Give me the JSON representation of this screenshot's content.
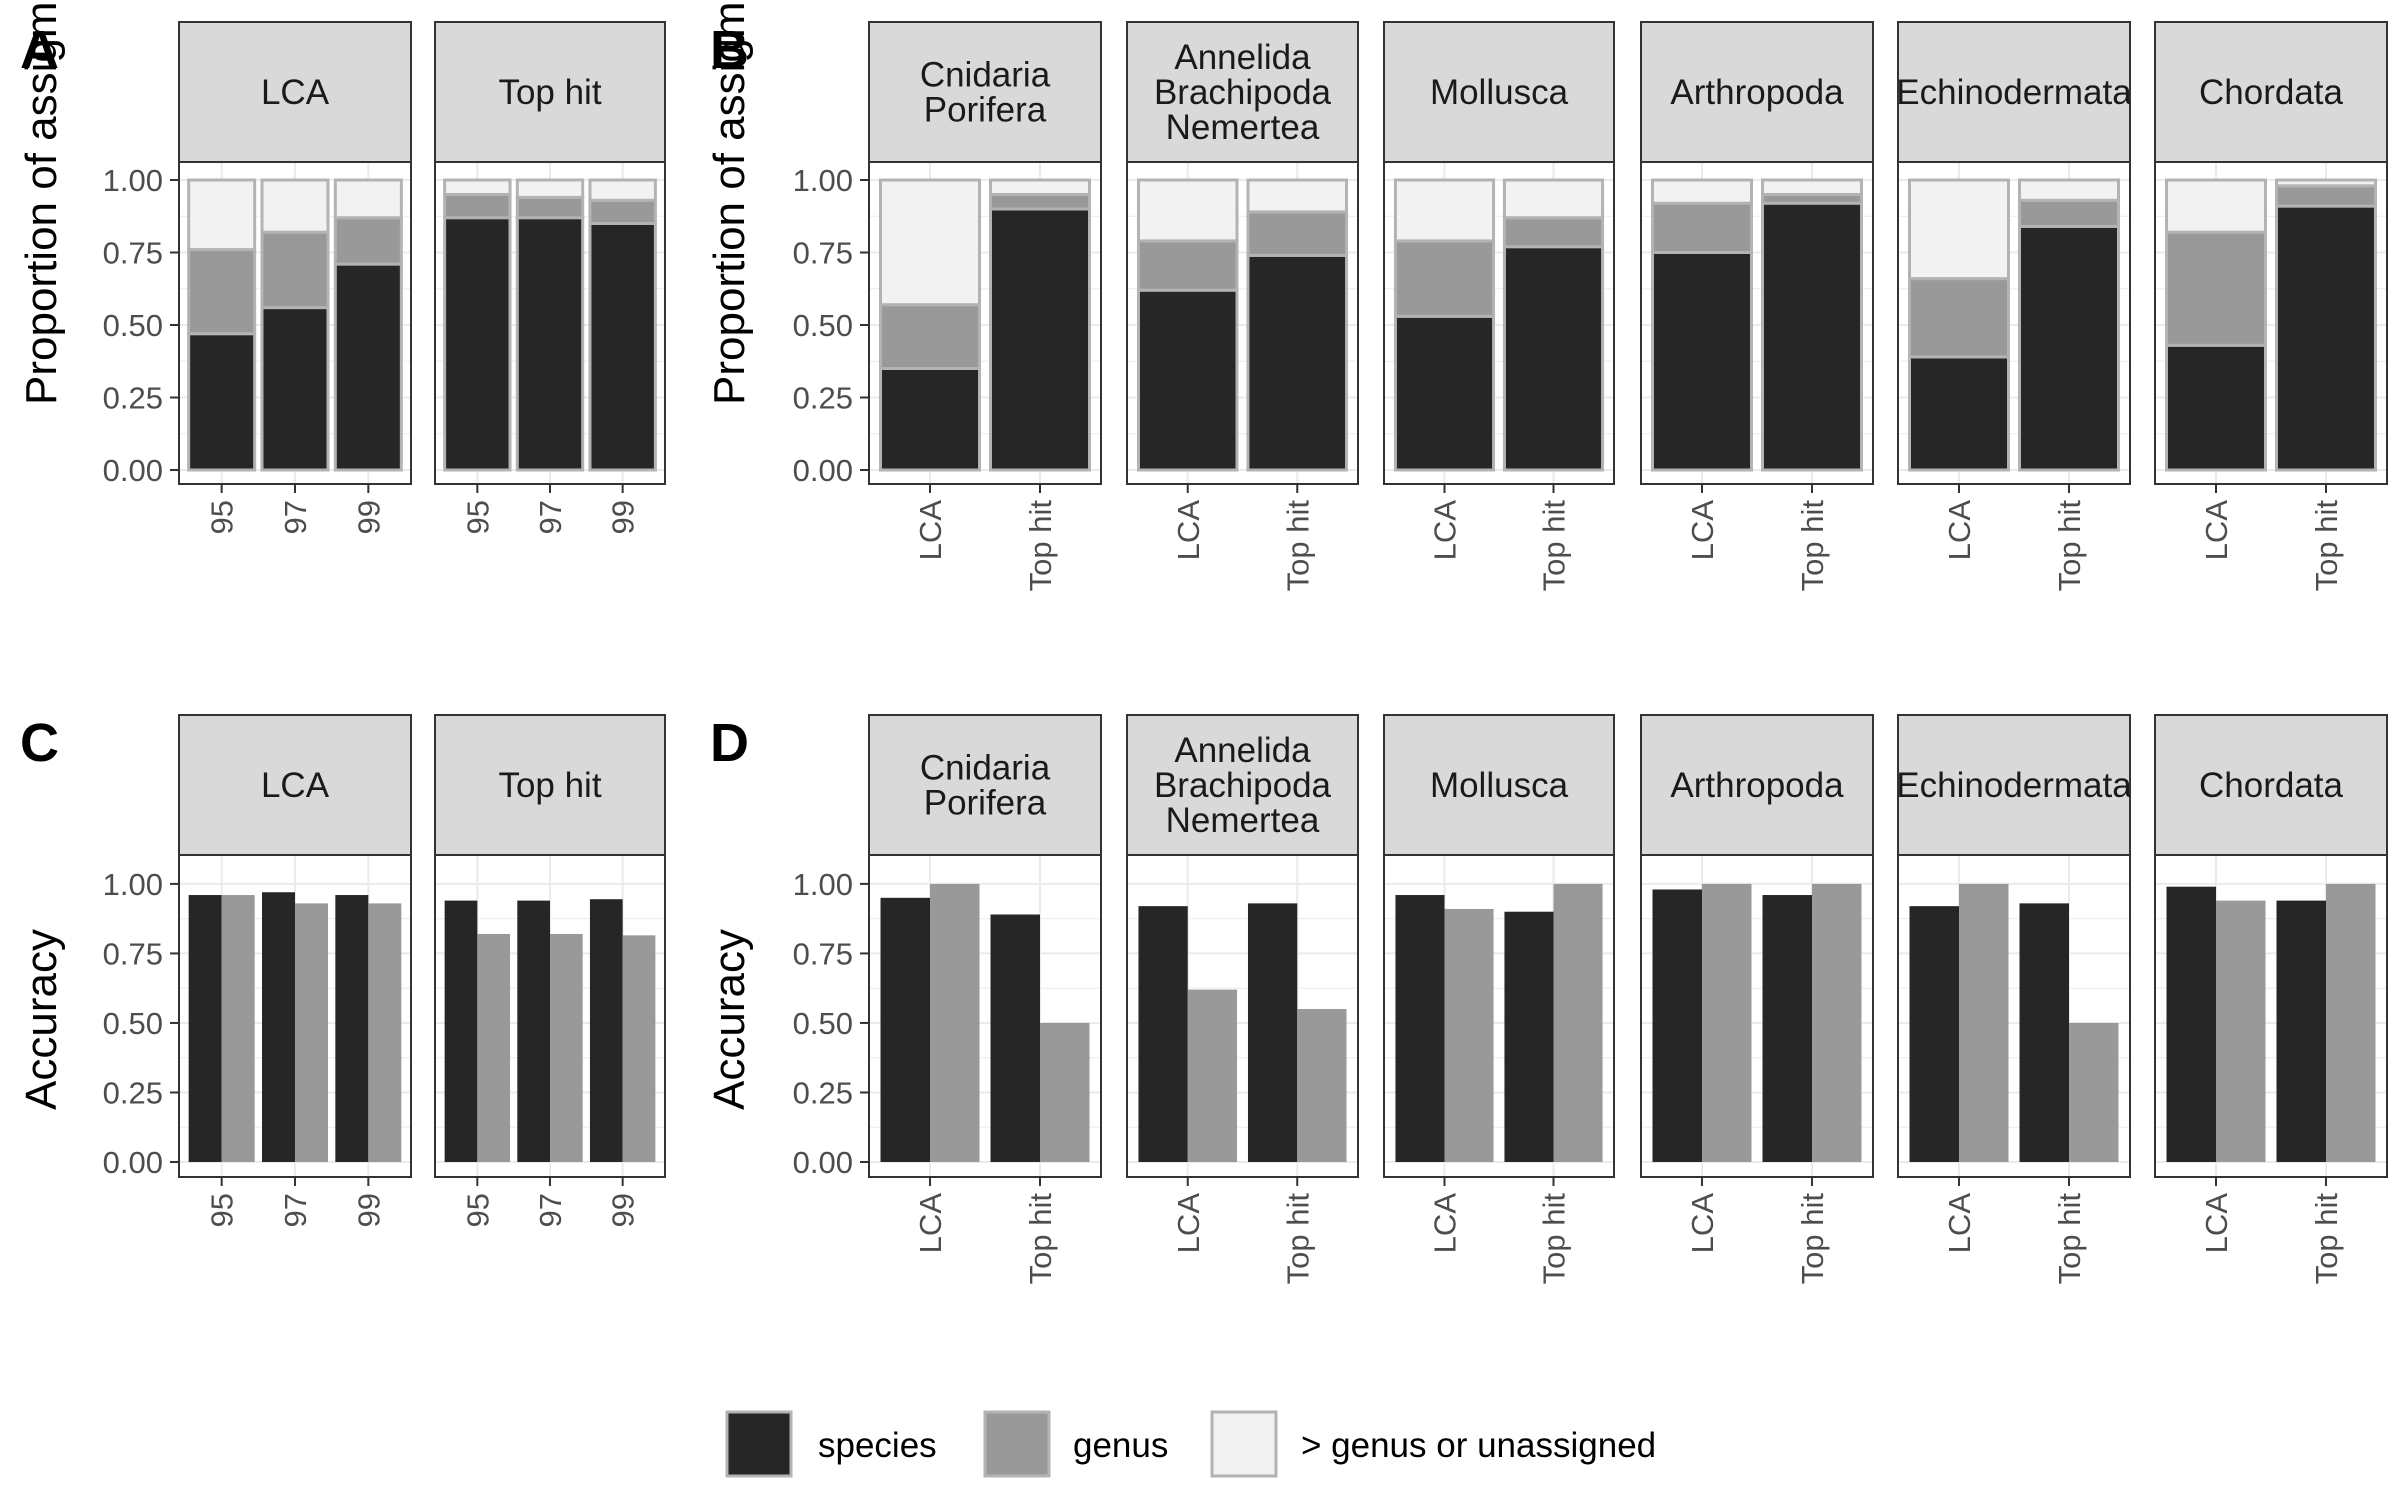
{
  "chart_data": [
    {
      "panel": "A",
      "type": "bar",
      "stacked": true,
      "ylabel": "Proportion of assigments",
      "ylim": [
        0,
        1
      ],
      "yticks": [
        "0.00",
        "0.25",
        "0.50",
        "0.75",
        "1.00"
      ],
      "facets": [
        {
          "strip": "LCA",
          "categories": [
            "95",
            "97",
            "99"
          ],
          "series": [
            {
              "name": "species",
              "values": [
                0.47,
                0.56,
                0.71
              ]
            },
            {
              "name": "genus",
              "values": [
                0.29,
                0.26,
                0.16
              ]
            },
            {
              "name": "> genus or unassigned",
              "values": [
                0.24,
                0.18,
                0.13
              ]
            }
          ]
        },
        {
          "strip": "Top hit",
          "categories": [
            "95",
            "97",
            "99"
          ],
          "series": [
            {
              "name": "species",
              "values": [
                0.87,
                0.87,
                0.85
              ]
            },
            {
              "name": "genus",
              "values": [
                0.08,
                0.07,
                0.08
              ]
            },
            {
              "name": "> genus or unassigned",
              "values": [
                0.05,
                0.06,
                0.07
              ]
            }
          ]
        }
      ]
    },
    {
      "panel": "B",
      "type": "bar",
      "stacked": true,
      "ylabel": "Proportion of assigments",
      "ylim": [
        0,
        1
      ],
      "yticks": [
        "0.00",
        "0.25",
        "0.50",
        "0.75",
        "1.00"
      ],
      "facets": [
        {
          "strip": [
            "Cnidaria",
            "Porifera"
          ],
          "categories": [
            "LCA",
            "Top hit"
          ],
          "series": [
            {
              "name": "species",
              "values": [
                0.35,
                0.9
              ]
            },
            {
              "name": "genus",
              "values": [
                0.22,
                0.05
              ]
            },
            {
              "name": "> genus or unassigned",
              "values": [
                0.43,
                0.05
              ]
            }
          ]
        },
        {
          "strip": [
            "Annelida",
            "Brachipoda",
            "Nemertea"
          ],
          "categories": [
            "LCA",
            "Top hit"
          ],
          "series": [
            {
              "name": "species",
              "values": [
                0.62,
                0.74
              ]
            },
            {
              "name": "genus",
              "values": [
                0.17,
                0.15
              ]
            },
            {
              "name": "> genus or unassigned",
              "values": [
                0.21,
                0.11
              ]
            }
          ]
        },
        {
          "strip": [
            "Mollusca"
          ],
          "categories": [
            "LCA",
            "Top hit"
          ],
          "series": [
            {
              "name": "species",
              "values": [
                0.53,
                0.77
              ]
            },
            {
              "name": "genus",
              "values": [
                0.26,
                0.1
              ]
            },
            {
              "name": "> genus or unassigned",
              "values": [
                0.21,
                0.13
              ]
            }
          ]
        },
        {
          "strip": [
            "Arthropoda"
          ],
          "categories": [
            "LCA",
            "Top hit"
          ],
          "series": [
            {
              "name": "species",
              "values": [
                0.75,
                0.92
              ]
            },
            {
              "name": "genus",
              "values": [
                0.17,
                0.03
              ]
            },
            {
              "name": "> genus or unassigned",
              "values": [
                0.08,
                0.05
              ]
            }
          ]
        },
        {
          "strip": [
            "Echinodermata"
          ],
          "categories": [
            "LCA",
            "Top hit"
          ],
          "series": [
            {
              "name": "species",
              "values": [
                0.39,
                0.84
              ]
            },
            {
              "name": "genus",
              "values": [
                0.27,
                0.09
              ]
            },
            {
              "name": "> genus or unassigned",
              "values": [
                0.34,
                0.07
              ]
            }
          ]
        },
        {
          "strip": [
            "Chordata"
          ],
          "categories": [
            "LCA",
            "Top hit"
          ],
          "series": [
            {
              "name": "species",
              "values": [
                0.43,
                0.91
              ]
            },
            {
              "name": "genus",
              "values": [
                0.39,
                0.07
              ]
            },
            {
              "name": "> genus or unassigned",
              "values": [
                0.18,
                0.02
              ]
            }
          ]
        }
      ]
    },
    {
      "panel": "C",
      "type": "bar",
      "stacked": false,
      "ylabel": "Accuracy",
      "ylim": [
        0,
        1.05
      ],
      "yticks": [
        "0.00",
        "0.25",
        "0.50",
        "0.75",
        "1.00"
      ],
      "facets": [
        {
          "strip": "LCA",
          "categories": [
            "95",
            "97",
            "99"
          ],
          "series": [
            {
              "name": "species",
              "values": [
                0.96,
                0.97,
                0.96
              ]
            },
            {
              "name": "genus",
              "values": [
                0.96,
                0.93,
                0.93
              ]
            }
          ]
        },
        {
          "strip": "Top hit",
          "categories": [
            "95",
            "97",
            "99"
          ],
          "series": [
            {
              "name": "species",
              "values": [
                0.94,
                0.94,
                0.945
              ]
            },
            {
              "name": "genus",
              "values": [
                0.82,
                0.82,
                0.815
              ]
            }
          ]
        }
      ]
    },
    {
      "panel": "D",
      "type": "bar",
      "stacked": false,
      "ylabel": "Accuracy",
      "ylim": [
        0,
        1.05
      ],
      "yticks": [
        "0.00",
        "0.25",
        "0.50",
        "0.75",
        "1.00"
      ],
      "facets": [
        {
          "strip": [
            "Cnidaria",
            "Porifera"
          ],
          "categories": [
            "LCA",
            "Top hit"
          ],
          "series": [
            {
              "name": "species",
              "values": [
                0.95,
                0.89
              ]
            },
            {
              "name": "genus",
              "values": [
                1.0,
                0.5
              ]
            }
          ]
        },
        {
          "strip": [
            "Annelida",
            "Brachipoda",
            "Nemertea"
          ],
          "categories": [
            "LCA",
            "Top hit"
          ],
          "series": [
            {
              "name": "species",
              "values": [
                0.92,
                0.93
              ]
            },
            {
              "name": "genus",
              "values": [
                0.62,
                0.55
              ]
            }
          ]
        },
        {
          "strip": [
            "Mollusca"
          ],
          "categories": [
            "LCA",
            "Top hit"
          ],
          "series": [
            {
              "name": "species",
              "values": [
                0.96,
                0.9
              ]
            },
            {
              "name": "genus",
              "values": [
                0.91,
                1.0
              ]
            }
          ]
        },
        {
          "strip": [
            "Arthropoda"
          ],
          "categories": [
            "LCA",
            "Top hit"
          ],
          "series": [
            {
              "name": "species",
              "values": [
                0.98,
                0.96
              ]
            },
            {
              "name": "genus",
              "values": [
                1.0,
                1.0
              ]
            }
          ]
        },
        {
          "strip": [
            "Echinodermata"
          ],
          "categories": [
            "LCA",
            "Top hit"
          ],
          "series": [
            {
              "name": "species",
              "values": [
                0.92,
                0.93
              ]
            },
            {
              "name": "genus",
              "values": [
                1.0,
                0.5
              ]
            }
          ]
        },
        {
          "strip": [
            "Chordata"
          ],
          "categories": [
            "LCA",
            "Top hit"
          ],
          "series": [
            {
              "name": "species",
              "values": [
                0.99,
                0.94
              ]
            },
            {
              "name": "genus",
              "values": [
                0.94,
                1.0
              ]
            }
          ]
        }
      ]
    }
  ],
  "legend": {
    "position": "bottom",
    "items": [
      {
        "label": "species",
        "color": "#262626"
      },
      {
        "label": "genus",
        "color": "#999999"
      },
      {
        "label": "> genus or unassigned",
        "color": "#f2f2f2"
      }
    ]
  },
  "colors": {
    "species": "#262626",
    "genus": "#999999",
    "unassigned": "#f2f2f2",
    "bar_outline": "#b3b3b3",
    "strip_fill": "#d9d9d9",
    "grid": "#ebebeb",
    "frame": "#333333"
  }
}
